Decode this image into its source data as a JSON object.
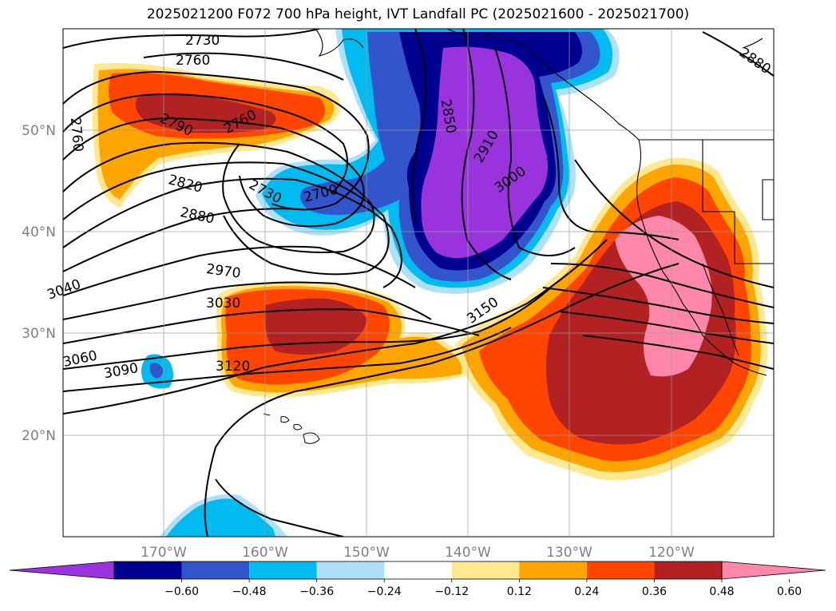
{
  "title": "2025021200 F072 700 hPa height, IVT Landfall PC (2025021600 - 2025021700)",
  "map": {
    "lat_labels": [
      "50°N",
      "40°N",
      "30°N",
      "20°N"
    ],
    "lon_labels": [
      "170°W",
      "160°W",
      "150°W",
      "140°W",
      "130°W",
      "120°W"
    ],
    "contour_labels": [
      "2730",
      "2760",
      "2760",
      "2760",
      "2790",
      "2820",
      "2880",
      "2970",
      "3030",
      "3060",
      "3090",
      "3120",
      "3150",
      "2730",
      "2700",
      "2850",
      "2910",
      "3000",
      "2880",
      "3040"
    ]
  },
  "colorbar": {
    "colors": [
      "#9933dd",
      "#000090",
      "#3355cc",
      "#00bbf0",
      "#aee0f8",
      "#ffffff",
      "#ffe890",
      "#ffa500",
      "#ff4500",
      "#b22222",
      "#ff88aa"
    ],
    "tick_labels": [
      "−0.60",
      "−0.48",
      "−0.36",
      "−0.24",
      "−0.12",
      "0.12",
      "0.24",
      "0.36",
      "0.48",
      "0.60"
    ]
  }
}
